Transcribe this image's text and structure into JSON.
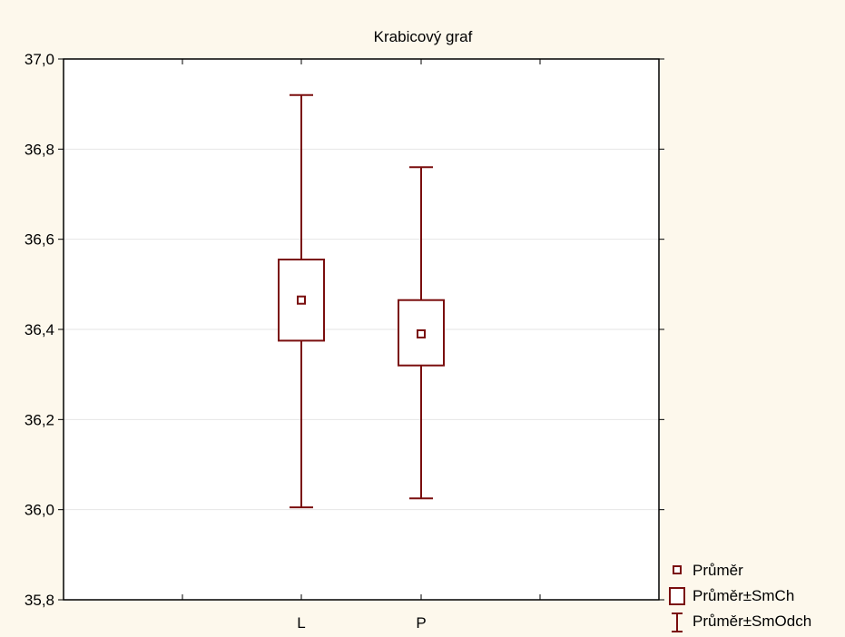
{
  "chart_data": {
    "type": "box",
    "title": "Krabicový graf",
    "xlabel": "",
    "ylabel": "",
    "ylim": [
      35.8,
      37.0
    ],
    "y_ticks": [
      35.8,
      36.0,
      36.2,
      36.4,
      36.6,
      36.8,
      37.0
    ],
    "y_tick_labels": [
      "35,8",
      "36,0",
      "36,2",
      "36,4",
      "36,6",
      "36,8",
      "37,0"
    ],
    "categories": [
      "L",
      "P"
    ],
    "grid": true,
    "legend_position": "bottom-right",
    "color": "#7a0e0e",
    "boxes": [
      {
        "category": "L",
        "mean": 36.465,
        "box_low": 36.375,
        "box_high": 36.555,
        "whisker_low": 36.005,
        "whisker_high": 36.92
      },
      {
        "category": "P",
        "mean": 36.39,
        "box_low": 36.32,
        "box_high": 36.465,
        "whisker_low": 36.025,
        "whisker_high": 36.76
      }
    ],
    "legend": [
      {
        "label": "Průměr",
        "symbol": "small-square"
      },
      {
        "label": "Průměr±SmCh",
        "symbol": "box"
      },
      {
        "label": "Průměr±SmOdch",
        "symbol": "whisker"
      }
    ]
  }
}
